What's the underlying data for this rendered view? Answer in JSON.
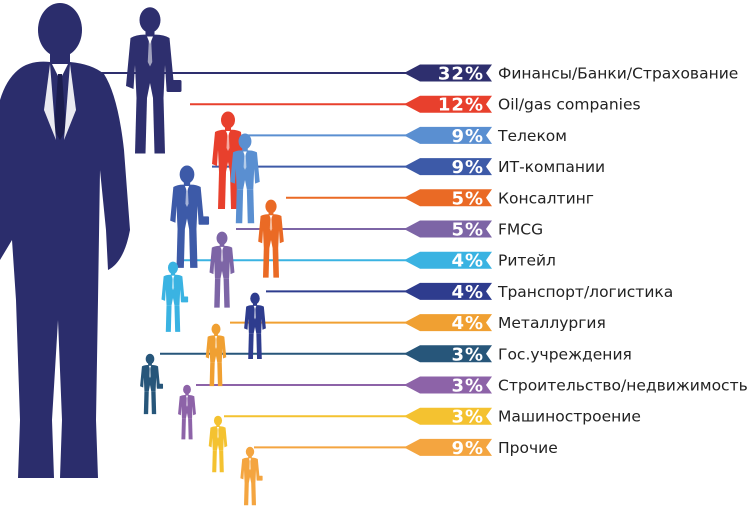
{
  "chart_data": {
    "type": "bar",
    "title": "",
    "unit": "%",
    "categories": [
      "Финансы/Банки/Страхование",
      "Oil/gas companies",
      "Телеком",
      "ИТ-компании",
      "Консалтинг",
      "FMCG",
      "Ритейл",
      "Транспорт/логистика",
      "Металлургия",
      "Гос.учреждения",
      "Строительство/недвижимость",
      "Машиностроение",
      "Прочие"
    ],
    "values": [
      32,
      12,
      9,
      9,
      5,
      5,
      4,
      4,
      4,
      3,
      3,
      3,
      9
    ],
    "value_labels": [
      "32%",
      "12%",
      "9%",
      "9%",
      "5%",
      "5%",
      "4%",
      "4%",
      "4%",
      "3%",
      "3%",
      "3%",
      "9%"
    ],
    "colors": [
      "#2e2f6e",
      "#e8402d",
      "#5a8fd1",
      "#3d5aa8",
      "#ea6a25",
      "#7d65a6",
      "#3ab3e2",
      "#2e3c8e",
      "#f0a032",
      "#27567a",
      "#8d63a8",
      "#f4c230",
      "#f4a540"
    ],
    "silhouette_color": "#2b2d6c"
  }
}
